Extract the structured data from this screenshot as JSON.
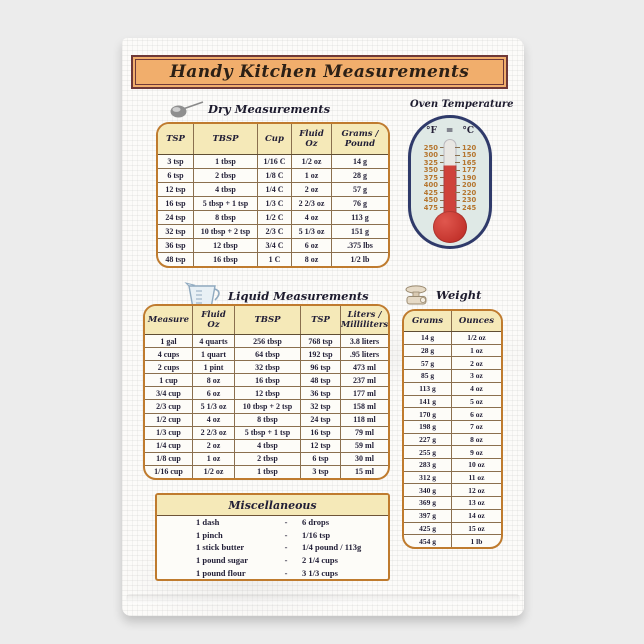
{
  "banner": {
    "title": "Handy Kitchen Measurements"
  },
  "colors": {
    "banner_fill": "#f1ae6c",
    "banner_border": "#6e3838",
    "table_border": "#bf7b2e",
    "table_header_bg": "#f5e9b8",
    "thermometer_outline": "#2f3a6a",
    "thermometer_fill": "#dfe9e6",
    "mercury_red": "#c93a32",
    "scale_number_color": "#b5762f",
    "ink": "#211e36"
  },
  "dry": {
    "heading": "Dry Measurements",
    "icon": "spoon-icon",
    "columns": [
      "TSP",
      "TBSP",
      "Cup",
      "Fluid Oz",
      "Grams / Pound"
    ],
    "rows": [
      [
        "3 tsp",
        "1 tbsp",
        "1/16 C",
        "1/2 oz",
        "14 g"
      ],
      [
        "6 tsp",
        "2 tbsp",
        "1/8 C",
        "1 oz",
        "28 g"
      ],
      [
        "12 tsp",
        "4 tbsp",
        "1/4 C",
        "2 oz",
        "57 g"
      ],
      [
        "16 tsp",
        "5 tbsp + 1 tsp",
        "1/3 C",
        "2 2/3 oz",
        "76 g"
      ],
      [
        "24 tsp",
        "8 tbsp",
        "1/2 C",
        "4 oz",
        "113 g"
      ],
      [
        "32 tsp",
        "10 tbsp + 2 tsp",
        "2/3 C",
        "5 1/3 oz",
        "151 g"
      ],
      [
        "36 tsp",
        "12 tbsp",
        "3/4 C",
        "6 oz",
        ".375 lbs"
      ],
      [
        "48 tsp",
        "16 tbsp",
        "1 C",
        "8 oz",
        "1/2 lb"
      ]
    ]
  },
  "oven": {
    "heading": "Oven Temperature",
    "f_label": "°F",
    "equals": "=",
    "c_label": "°C",
    "fahrenheit": [
      "250",
      "300",
      "325",
      "350",
      "375",
      "400",
      "425",
      "450",
      "475"
    ],
    "celsius": [
      "120",
      "150",
      "165",
      "177",
      "190",
      "200",
      "220",
      "230",
      "245"
    ]
  },
  "liquid": {
    "heading": "Liquid Measurements",
    "icon": "measuring-cup-icon",
    "columns": [
      "Measure",
      "Fluid Oz",
      "TBSP",
      "TSP",
      "Liters / Milliliters"
    ],
    "rows": [
      [
        "1 gal",
        "4 quarts",
        "256 tbsp",
        "768 tsp",
        "3.8 liters"
      ],
      [
        "4 cups",
        "1 quart",
        "64 tbsp",
        "192 tsp",
        ".95 liters"
      ],
      [
        "2 cups",
        "1 pint",
        "32 tbsp",
        "96 tsp",
        "473 ml"
      ],
      [
        "1 cup",
        "8 oz",
        "16 tbsp",
        "48 tsp",
        "237 ml"
      ],
      [
        "3/4 cup",
        "6 oz",
        "12 tbsp",
        "36 tsp",
        "177 ml"
      ],
      [
        "2/3 cup",
        "5 1/3 oz",
        "10 tbsp + 2 tsp",
        "32 tsp",
        "158 ml"
      ],
      [
        "1/2 cup",
        "4 oz",
        "8 tbsp",
        "24 tsp",
        "118 ml"
      ],
      [
        "1/3 cup",
        "2 2/3 oz",
        "5 tbsp + 1 tsp",
        "16 tsp",
        "79 ml"
      ],
      [
        "1/4 cup",
        "2 oz",
        "4 tbsp",
        "12 tsp",
        "59 ml"
      ],
      [
        "1/8 cup",
        "1 oz",
        "2 tbsp",
        "6 tsp",
        "30 ml"
      ],
      [
        "1/16 cup",
        "1/2 oz",
        "1 tbsp",
        "3 tsp",
        "15 ml"
      ]
    ]
  },
  "weight": {
    "heading": "Weight",
    "icon": "kitchen-scale-icon",
    "columns": [
      "Grams",
      "Ounces"
    ],
    "rows": [
      [
        "14 g",
        "1/2 oz"
      ],
      [
        "28 g",
        "1 oz"
      ],
      [
        "57 g",
        "2 oz"
      ],
      [
        "85 g",
        "3 oz"
      ],
      [
        "113 g",
        "4 oz"
      ],
      [
        "141 g",
        "5 oz"
      ],
      [
        "170 g",
        "6 oz"
      ],
      [
        "198 g",
        "7 oz"
      ],
      [
        "227 g",
        "8 oz"
      ],
      [
        "255 g",
        "9 oz"
      ],
      [
        "283 g",
        "10 oz"
      ],
      [
        "312 g",
        "11 oz"
      ],
      [
        "340 g",
        "12 oz"
      ],
      [
        "369 g",
        "13 oz"
      ],
      [
        "397 g",
        "14 oz"
      ],
      [
        "425 g",
        "15 oz"
      ],
      [
        "454 g",
        "1 lb"
      ]
    ]
  },
  "misc": {
    "heading": "Miscellaneous",
    "rows": [
      [
        "1 dash",
        "-",
        "6 drops"
      ],
      [
        "1 pinch",
        "-",
        "1/16 tsp"
      ],
      [
        "1 stick butter",
        "-",
        "1/4 pound / 113g"
      ],
      [
        "1 pound sugar",
        "-",
        "2 1/4 cups"
      ],
      [
        "1 pound flour",
        "-",
        "3 1/3 cups"
      ]
    ]
  }
}
